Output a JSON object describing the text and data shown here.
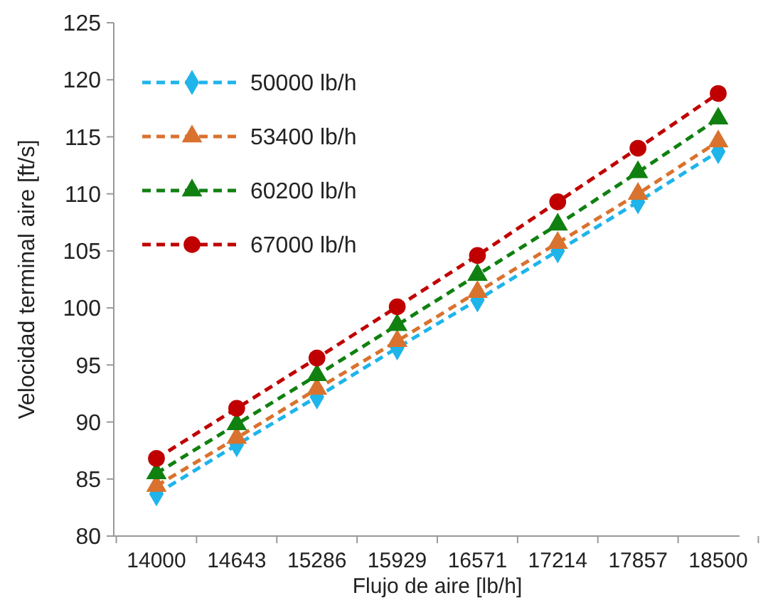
{
  "chart_data": {
    "type": "line",
    "xlabel": "Flujo de aire [lb/h]",
    "ylabel": "Velocidad terminal aire [ft/s]",
    "categories": [
      "14000",
      "14643",
      "15286",
      "15929",
      "16571",
      "17214",
      "17857",
      "18500"
    ],
    "series": [
      {
        "name": "50000 lb/h",
        "color": "#1fb4ea",
        "marker": "diamond",
        "values": [
          83.7,
          88.0,
          92.2,
          96.5,
          100.7,
          105.0,
          109.3,
          113.7
        ]
      },
      {
        "name": "53400 lb/h",
        "color": "#d9722e",
        "marker": "triangle",
        "values": [
          84.4,
          88.6,
          92.9,
          97.1,
          101.4,
          105.7,
          110.0,
          114.6
        ]
      },
      {
        "name": "60200 lb/h",
        "color": "#108010",
        "marker": "triangle",
        "values": [
          85.5,
          89.8,
          94.1,
          98.5,
          102.9,
          107.3,
          111.9,
          116.6
        ]
      },
      {
        "name": "67000 lb/h",
        "color": "#c00000",
        "marker": "circle",
        "values": [
          86.8,
          91.2,
          95.6,
          100.1,
          104.6,
          109.3,
          114.0,
          118.8
        ]
      }
    ],
    "ylim": [
      80,
      125
    ],
    "yticks": [
      80,
      85,
      90,
      95,
      100,
      105,
      110,
      115,
      120,
      125
    ],
    "grid": false,
    "legend": "top left",
    "line_style": "dashed"
  }
}
